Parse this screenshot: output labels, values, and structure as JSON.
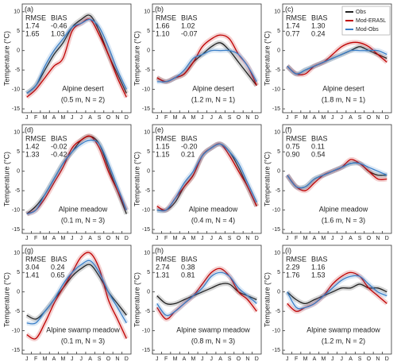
{
  "chart_data": [
    {
      "type": "line",
      "panel_label": "(a)",
      "site": "Alpine desert",
      "depth": "(0.5 m,  N = 2)",
      "ylabel": "Temperature (°C)",
      "categories": [
        "J",
        "F",
        "M",
        "A",
        "M",
        "J",
        "J",
        "A",
        "S",
        "O",
        "N",
        "D"
      ],
      "ylim": [
        -16,
        12
      ],
      "yticks": [
        -15,
        -10,
        -5,
        0,
        5,
        10
      ],
      "stats": {
        "headers": [
          "RMSE",
          "BIAS"
        ],
        "rows": [
          [
            "1.74",
            "-0.46"
          ],
          [
            "1.65",
            "1.03"
          ]
        ]
      },
      "series": [
        {
          "name": "Obs",
          "color": "#222222",
          "values": [
            -11,
            -9,
            -5,
            -1,
            2,
            6,
            8,
            9,
            5,
            -1,
            -6,
            -11
          ]
        },
        {
          "name": "Mod-ERA5L",
          "color": "#c00000",
          "values": [
            -12,
            -10,
            -7,
            -4,
            -2,
            5,
            7,
            8,
            4,
            -1,
            -7,
            -12
          ]
        },
        {
          "name": "Mod-Obs",
          "color": "#3a7fc8",
          "values": [
            -11,
            -9,
            -4,
            0,
            3,
            6,
            7,
            8,
            6,
            1,
            -5,
            -10
          ]
        }
      ]
    },
    {
      "type": "line",
      "panel_label": "(b)",
      "site": "Alpine desert",
      "depth": "(1.2 m,  N = 1)",
      "ylabel": "Temperature (°C)",
      "categories": [
        "J",
        "F",
        "M",
        "A",
        "M",
        "J",
        "J",
        "A",
        "S",
        "O",
        "N",
        "D"
      ],
      "ylim": [
        -16,
        12
      ],
      "yticks": [
        -15,
        -10,
        -5,
        0,
        5,
        10
      ],
      "stats": {
        "headers": [
          "RMSE",
          "BIAS"
        ],
        "rows": [
          [
            "1.66",
            "1.02"
          ],
          [
            "1.10",
            "-0.07"
          ]
        ]
      },
      "series": [
        {
          "name": "Obs",
          "color": "#222222",
          "values": [
            -7,
            -8,
            -7,
            -6,
            -3,
            -1,
            1,
            2,
            0,
            -3,
            -6,
            -9
          ]
        },
        {
          "name": "Mod-ERA5L",
          "color": "#c00000",
          "values": [
            -7,
            -8,
            -7,
            -6,
            -3,
            1,
            3,
            4,
            3,
            -1,
            -4,
            -9
          ]
        },
        {
          "name": "Mod-Obs",
          "color": "#3a7fc8",
          "values": [
            -8,
            -8,
            -7,
            -5,
            -2,
            -1,
            0,
            0,
            0,
            -1,
            -4,
            -8
          ]
        }
      ]
    },
    {
      "type": "line",
      "panel_label": "(c)",
      "site": "Alpine desert",
      "depth": "(1.8 m,  N = 1)",
      "ylabel": "Temperature (°C)",
      "categories": [
        "J",
        "F",
        "M",
        "A",
        "M",
        "J",
        "J",
        "A",
        "S",
        "O",
        "N",
        "D"
      ],
      "ylim": [
        -16,
        12
      ],
      "yticks": [
        -15,
        -10,
        -5,
        0,
        5,
        10
      ],
      "stats": {
        "headers": [
          "RMSE",
          "BIAS"
        ],
        "rows": [
          [
            "1.74",
            "1.30"
          ],
          [
            "0.77",
            "0.24"
          ]
        ]
      },
      "legend": "upper right",
      "series": [
        {
          "name": "Obs",
          "color": "#222222",
          "values": [
            -4,
            -6,
            -5,
            -4,
            -3,
            -2,
            -1,
            0,
            1,
            0,
            -1,
            -2
          ]
        },
        {
          "name": "Mod-ERA5L",
          "color": "#c00000",
          "values": [
            -4,
            -6,
            -6,
            -4,
            -3,
            -1,
            1,
            2,
            2,
            1,
            -1,
            -3
          ]
        },
        {
          "name": "Mod-Obs",
          "color": "#3a7fc8",
          "values": [
            -4,
            -6,
            -5,
            -4,
            -3,
            -2,
            -1,
            0,
            0,
            0,
            0,
            -1
          ]
        }
      ]
    },
    {
      "type": "line",
      "panel_label": "(d)",
      "site": "Alpine meadow",
      "depth": "(0.1 m,  N = 3)",
      "ylabel": "Temperature (°C)",
      "categories": [
        "J",
        "F",
        "M",
        "A",
        "M",
        "J",
        "J",
        "A",
        "S",
        "O",
        "N",
        "D"
      ],
      "ylim": [
        -16,
        12
      ],
      "yticks": [
        -15,
        -10,
        -5,
        0,
        5,
        10
      ],
      "stats": {
        "headers": [
          "RMSE",
          "BIAS"
        ],
        "rows": [
          [
            "1.42",
            "-0.02"
          ],
          [
            "1.33",
            "-0.42"
          ]
        ]
      },
      "series": [
        {
          "name": "Obs",
          "color": "#222222",
          "values": [
            -11,
            -9,
            -6,
            -2,
            2,
            5,
            8,
            9,
            7,
            1,
            -5,
            -11
          ]
        },
        {
          "name": "Mod-ERA5L",
          "color": "#c00000",
          "values": [
            -11,
            -10,
            -7,
            -3,
            1,
            6,
            8,
            9,
            6,
            0,
            -5,
            -10
          ]
        },
        {
          "name": "Mod-Obs",
          "color": "#3a7fc8",
          "values": [
            -11,
            -10,
            -6,
            -2,
            2,
            5,
            7,
            8,
            7,
            2,
            -4,
            -10
          ]
        }
      ]
    },
    {
      "type": "line",
      "panel_label": "(e)",
      "site": "Alpine meadow",
      "depth": "(0.4 m,  N = 4)",
      "ylabel": "Temperature (°C)",
      "categories": [
        "J",
        "F",
        "M",
        "A",
        "M",
        "J",
        "J",
        "A",
        "S",
        "O",
        "N",
        "D"
      ],
      "ylim": [
        -16,
        12
      ],
      "yticks": [
        -15,
        -10,
        -5,
        0,
        5,
        10
      ],
      "stats": {
        "headers": [
          "RMSE",
          "BIAS"
        ],
        "rows": [
          [
            "1.15",
            "-0.20"
          ],
          [
            "1.15",
            "0.21"
          ]
        ]
      },
      "series": [
        {
          "name": "Obs",
          "color": "#222222",
          "values": [
            -10,
            -10,
            -8,
            -4,
            -1,
            4,
            6,
            7,
            5,
            1,
            -4,
            -9
          ]
        },
        {
          "name": "Mod-ERA5L",
          "color": "#c00000",
          "values": [
            -9,
            -10,
            -7,
            -4,
            -1,
            4,
            6,
            7,
            4,
            0,
            -4,
            -9
          ]
        },
        {
          "name": "Mod-Obs",
          "color": "#3a7fc8",
          "values": [
            -10,
            -10,
            -7,
            -3,
            0,
            4,
            6,
            7,
            5,
            2,
            -3,
            -8
          ]
        }
      ]
    },
    {
      "type": "line",
      "panel_label": "(f)",
      "site": "Alpine meadow",
      "depth": "(1.6 m,  N = 3)",
      "ylabel": "Temperature (°C)",
      "categories": [
        "J",
        "F",
        "M",
        "A",
        "M",
        "J",
        "J",
        "A",
        "S",
        "O",
        "N",
        "D"
      ],
      "ylim": [
        -16,
        12
      ],
      "yticks": [
        -15,
        -10,
        -5,
        0,
        5,
        10
      ],
      "stats": {
        "headers": [
          "RMSE",
          "BIAS"
        ],
        "rows": [
          [
            "0.75",
            "0.11"
          ],
          [
            "0.90",
            "0.54"
          ]
        ]
      },
      "series": [
        {
          "name": "Obs",
          "color": "#222222",
          "values": [
            -1,
            -4,
            -4,
            -2,
            -1,
            0,
            1,
            2,
            2,
            0,
            -1,
            -1
          ]
        },
        {
          "name": "Mod-ERA5L",
          "color": "#c00000",
          "values": [
            -1,
            -4,
            -5,
            -3,
            -1,
            0,
            1,
            3,
            2,
            0,
            -2,
            -2
          ]
        },
        {
          "name": "Mod-Obs",
          "color": "#3a7fc8",
          "values": [
            -1,
            -4,
            -4,
            -2,
            -1,
            0,
            1,
            2,
            2,
            1,
            0,
            -1
          ]
        }
      ]
    },
    {
      "type": "line",
      "panel_label": "(g)",
      "site": "Alpine swamp meadow",
      "depth": "(0.1 m,  N = 3)",
      "ylabel": "Temperature (°C)",
      "categories": [
        "J",
        "F",
        "M",
        "A",
        "M",
        "J",
        "J",
        "A",
        "S",
        "O",
        "N",
        "D"
      ],
      "ylim": [
        -16,
        12
      ],
      "yticks": [
        -15,
        -10,
        -5,
        0,
        5,
        10
      ],
      "stats": {
        "headers": [
          "RMSE",
          "BIAS"
        ],
        "rows": [
          [
            "3.04",
            "0.24"
          ],
          [
            "1.41",
            "0.65"
          ]
        ]
      },
      "series": [
        {
          "name": "Obs",
          "color": "#222222",
          "values": [
            -6,
            -7,
            -5,
            -2,
            1,
            4,
            6,
            7,
            4,
            0,
            -3,
            -6
          ]
        },
        {
          "name": "Mod-ERA5L",
          "color": "#c00000",
          "values": [
            -11,
            -12,
            -8,
            -3,
            1,
            5,
            9,
            10,
            6,
            -2,
            -7,
            -12
          ]
        },
        {
          "name": "Mod-Obs",
          "color": "#3a7fc8",
          "values": [
            -8,
            -8,
            -5,
            -2,
            2,
            5,
            7,
            8,
            5,
            0,
            -4,
            -8
          ]
        }
      ]
    },
    {
      "type": "line",
      "panel_label": "(h)",
      "site": "Alpine swamp meadow",
      "depth": "(0.8 m,  N = 3)",
      "ylabel": "Temperature (°C)",
      "categories": [
        "J",
        "F",
        "M",
        "A",
        "M",
        "J",
        "J",
        "A",
        "S",
        "O",
        "N",
        "D"
      ],
      "ylim": [
        -16,
        12
      ],
      "yticks": [
        -15,
        -10,
        -5,
        0,
        5,
        10
      ],
      "stats": {
        "headers": [
          "RMSE",
          "BIAS"
        ],
        "rows": [
          [
            "2.74",
            "0.38"
          ],
          [
            "1.31",
            "0.81"
          ]
        ]
      },
      "series": [
        {
          "name": "Obs",
          "color": "#222222",
          "values": [
            -1,
            -3,
            -3,
            -2,
            -1,
            0,
            1,
            2,
            2,
            0,
            -1,
            -2
          ]
        },
        {
          "name": "Mod-ERA5L",
          "color": "#c00000",
          "values": [
            -4,
            -7,
            -5,
            -3,
            -1,
            2,
            5,
            6,
            4,
            0,
            -2,
            -5
          ]
        },
        {
          "name": "Mod-Obs",
          "color": "#3a7fc8",
          "values": [
            -3,
            -6,
            -5,
            -3,
            -1,
            1,
            4,
            5,
            4,
            1,
            -1,
            -3
          ]
        }
      ]
    },
    {
      "type": "line",
      "panel_label": "(i)",
      "site": "Alpine swamp meadow",
      "depth": "(1.2 m,  N = 2)",
      "ylabel": "Temperature (°C)",
      "categories": [
        "J",
        "F",
        "M",
        "A",
        "M",
        "J",
        "J",
        "A",
        "S",
        "O",
        "N",
        "D"
      ],
      "ylim": [
        -16,
        12
      ],
      "yticks": [
        -15,
        -10,
        -5,
        0,
        5,
        10
      ],
      "stats": {
        "headers": [
          "RMSE",
          "BIAS"
        ],
        "rows": [
          [
            "2.29",
            "1.16"
          ],
          [
            "1.76",
            "1.53"
          ]
        ]
      },
      "series": [
        {
          "name": "Obs",
          "color": "#222222",
          "values": [
            0,
            -2,
            -3,
            -2,
            -1,
            0,
            1,
            1,
            2,
            1,
            1,
            0
          ]
        },
        {
          "name": "Mod-ERA5L",
          "color": "#c00000",
          "values": [
            -3,
            -5,
            -4,
            -3,
            -1,
            2,
            4,
            5,
            4,
            1,
            -1,
            -3
          ]
        },
        {
          "name": "Mod-Obs",
          "color": "#3a7fc8",
          "values": [
            0,
            -4,
            -4,
            -3,
            -1,
            1,
            3,
            4,
            4,
            2,
            0,
            -1
          ]
        }
      ]
    }
  ]
}
